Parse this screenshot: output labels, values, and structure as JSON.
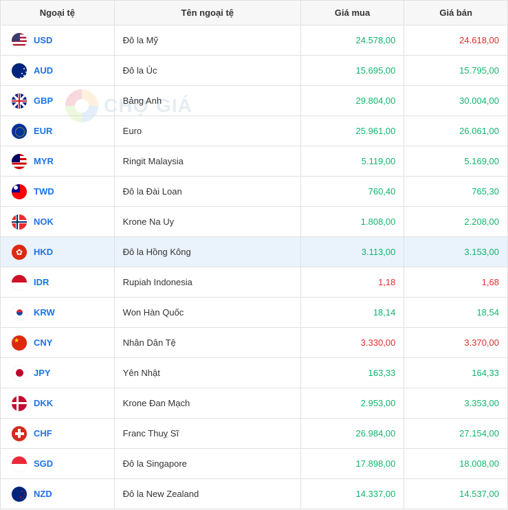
{
  "watermark_text": "CHỢ GIÁ",
  "columns": [
    {
      "label": "Ngoại tệ"
    },
    {
      "label": "Tên ngoại tệ"
    },
    {
      "label": "Giá mua"
    },
    {
      "label": "Giá bán"
    }
  ],
  "colors": {
    "up": "#0fb56d",
    "down": "#e02b2b",
    "link": "#1a73e8",
    "highlight_row_bg": "#eaf3fb"
  },
  "rows": [
    {
      "code": "USD",
      "name": "Đô la Mỹ",
      "buy": "24.578,00",
      "buy_dir": "up",
      "sell": "24.618,00",
      "sell_dir": "down",
      "highlight": false
    },
    {
      "code": "AUD",
      "name": "Đô la Úc",
      "buy": "15.695,00",
      "buy_dir": "up",
      "sell": "15.795,00",
      "sell_dir": "up",
      "highlight": false
    },
    {
      "code": "GBP",
      "name": "Bảng Anh",
      "buy": "29.804,00",
      "buy_dir": "up",
      "sell": "30.004,00",
      "sell_dir": "up",
      "highlight": false
    },
    {
      "code": "EUR",
      "name": "Euro",
      "buy": "25.961,00",
      "buy_dir": "up",
      "sell": "26.061,00",
      "sell_dir": "up",
      "highlight": false
    },
    {
      "code": "MYR",
      "name": "Ringit Malaysia",
      "buy": "5.119,00",
      "buy_dir": "up",
      "sell": "5.169,00",
      "sell_dir": "up",
      "highlight": false
    },
    {
      "code": "TWD",
      "name": "Đô la Đài Loan",
      "buy": "760,40",
      "buy_dir": "up",
      "sell": "765,30",
      "sell_dir": "up",
      "highlight": false
    },
    {
      "code": "NOK",
      "name": "Krone Na Uy",
      "buy": "1.808,00",
      "buy_dir": "up",
      "sell": "2.208,00",
      "sell_dir": "up",
      "highlight": false
    },
    {
      "code": "HKD",
      "name": "Đô la Hồng Kông",
      "buy": "3.113,00",
      "buy_dir": "up",
      "sell": "3.153,00",
      "sell_dir": "up",
      "highlight": true
    },
    {
      "code": "IDR",
      "name": "Rupiah Indonesia",
      "buy": "1,18",
      "buy_dir": "down",
      "sell": "1,68",
      "sell_dir": "down",
      "highlight": false
    },
    {
      "code": "KRW",
      "name": "Won Hàn Quốc",
      "buy": "18,14",
      "buy_dir": "up",
      "sell": "18,54",
      "sell_dir": "up",
      "highlight": false
    },
    {
      "code": "CNY",
      "name": "Nhân Dân Tệ",
      "buy": "3.330,00",
      "buy_dir": "down",
      "sell": "3.370,00",
      "sell_dir": "down",
      "highlight": false
    },
    {
      "code": "JPY",
      "name": "Yên Nhật",
      "buy": "163,33",
      "buy_dir": "up",
      "sell": "164,33",
      "sell_dir": "up",
      "highlight": false
    },
    {
      "code": "DKK",
      "name": "Krone Đan Mạch",
      "buy": "2.953,00",
      "buy_dir": "up",
      "sell": "3.353,00",
      "sell_dir": "up",
      "highlight": false
    },
    {
      "code": "CHF",
      "name": "Franc Thuỵ Sĩ",
      "buy": "26.984,00",
      "buy_dir": "up",
      "sell": "27.154,00",
      "sell_dir": "up",
      "highlight": false
    },
    {
      "code": "SGD",
      "name": "Đô la Singapore",
      "buy": "17.898,00",
      "buy_dir": "up",
      "sell": "18.008,00",
      "sell_dir": "up",
      "highlight": false
    },
    {
      "code": "NZD",
      "name": "Đô la New Zealand",
      "buy": "14.337,00",
      "buy_dir": "up",
      "sell": "14.537,00",
      "sell_dir": "up",
      "highlight": false
    }
  ]
}
